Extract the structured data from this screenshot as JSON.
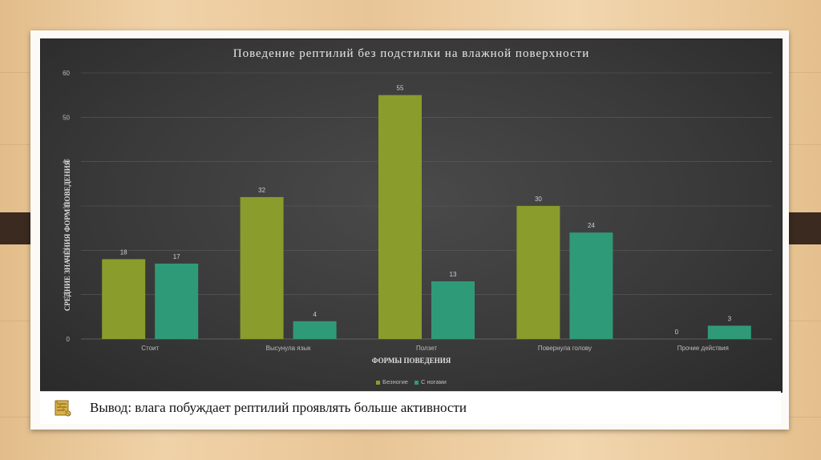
{
  "colors": {
    "series1": "#8a9c2c",
    "series2": "#2f9a78",
    "panel_bg": "#3a3a3a",
    "gridline": "#5c5c5c"
  },
  "conclusion": {
    "icon": "scroll-icon",
    "text": "Вывод: влага побуждает рептилий проявлять больше активности"
  },
  "chart_data": {
    "type": "bar",
    "title": "Поведение рептилий без подстилки на влажной поверхности",
    "xlabel": "ФОРМЫ ПОВЕДЕНИЯ",
    "ylabel": "СРЕДНИЕ ЗНАЧЕНИЯ ФОРМ ПОВЕДЕНИЯ",
    "ylim": [
      0,
      60
    ],
    "yticks": [
      0,
      10,
      20,
      30,
      40,
      50,
      60
    ],
    "categories": [
      "Стоит",
      "Высунула язык",
      "Ползет",
      "Повернула голову",
      "Прочие действия"
    ],
    "series": [
      {
        "name": "Безногие",
        "values": [
          18,
          32,
          55,
          30,
          0
        ]
      },
      {
        "name": "С ногами",
        "values": [
          17,
          4,
          13,
          24,
          3
        ]
      }
    ],
    "grid": true,
    "legend": "bottom-center"
  }
}
